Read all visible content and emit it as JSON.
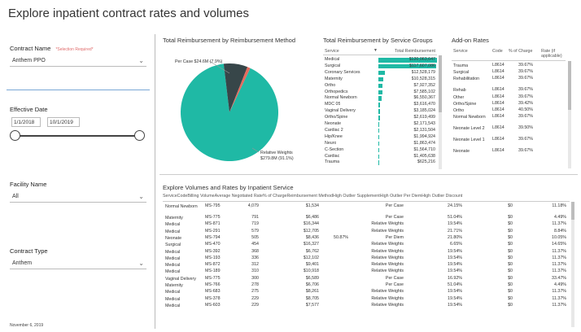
{
  "title": "Explore inpatient contract rates and volumes",
  "filters": {
    "contract_name_label": "Contract Name",
    "contract_name_required": "*Selection Required*",
    "contract_name_value": "Anthem PPO",
    "effective_date_label": "Effective Date",
    "date_start": "1/1/2018",
    "date_end": "10/1/2019",
    "slider_start": 0,
    "slider_end": 1,
    "facility_label": "Facility Name",
    "facility_value": "All",
    "contract_type_label": "Contract Type",
    "contract_type_value": "Anthem",
    "footer_date": "November 6, 2019"
  },
  "pie": {
    "title": "Total Reimbursement by Reimbursement Method",
    "label_a": "Per Case $24.6M (7.9%)",
    "label_b1": "Relative Weights",
    "label_b2": "$279.8M (91.1%)",
    "slices": [
      {
        "name": "Relative Weights",
        "value": 91.1,
        "color": "#1fb9a5"
      },
      {
        "name": "Per Case",
        "value": 7.9,
        "color": "#374649"
      },
      {
        "name": "Per Diem",
        "value": 1.0,
        "color": "#e56a5d"
      }
    ]
  },
  "groups": {
    "title": "Total Reimbursement by Service Groups",
    "headers": [
      "Service",
      "Total Reimbursement"
    ],
    "max": 120063647,
    "rows": [
      {
        "s": "Medical",
        "v": "$120,063,647",
        "n": 120063647
      },
      {
        "s": "Surgical",
        "v": "$117,607,086",
        "n": 117607086
      },
      {
        "s": "Coronary Services",
        "v": "$12,528,179",
        "n": 12528179
      },
      {
        "s": "Maternity",
        "v": "$10,528,315",
        "n": 10528315
      },
      {
        "s": "Ortho",
        "v": "$7,927,352",
        "n": 7927352
      },
      {
        "s": "Orthopedics",
        "v": "$7,585,102",
        "n": 7585102
      },
      {
        "s": "Normal Newborn",
        "v": "$6,550,367",
        "n": 6550367
      },
      {
        "s": "MDC 05",
        "v": "$3,616,470",
        "n": 3616470
      },
      {
        "s": "Vaginal Delivery",
        "v": "$3,185,024",
        "n": 3185024
      },
      {
        "s": "Ortho/Spine",
        "v": "$2,619,499",
        "n": 2619499
      },
      {
        "s": "Neonate",
        "v": "$2,171,543",
        "n": 2171543
      },
      {
        "s": "Cardiac 2",
        "v": "$2,131,504",
        "n": 2131504
      },
      {
        "s": "Hip/Knee",
        "v": "$1,994,924",
        "n": 1994924
      },
      {
        "s": "Neuro",
        "v": "$1,863,474",
        "n": 1863474
      },
      {
        "s": "C-Section",
        "v": "$1,564,710",
        "n": 1564710
      },
      {
        "s": "Cardiac",
        "v": "$1,405,638",
        "n": 1405638
      },
      {
        "s": "Trauma",
        "v": "$625,216",
        "n": 625216
      }
    ]
  },
  "addon": {
    "title": "Add-on Rates",
    "headers": [
      "Service",
      "Code",
      "% of Charge",
      "Rate (if applicable)"
    ],
    "rows": [
      {
        "s": "Trauma",
        "c": "L8614",
        "p": "39.67%"
      },
      {
        "s": "Surgical",
        "c": "L8614",
        "p": "39.67%"
      },
      {
        "s": "Rehabilitation",
        "c": "L8614",
        "p": "39.67%"
      },
      {
        "s": "Rehab",
        "c": "L8614",
        "p": "39.67%"
      },
      {
        "s": "Other",
        "c": "L8614",
        "p": "39.67%"
      },
      {
        "s": "Ortho/Spine",
        "c": "L8614",
        "p": "39.42%"
      },
      {
        "s": "Ortho",
        "c": "L8614",
        "p": "40.50%"
      },
      {
        "s": "Normal Newborn",
        "c": "L8614",
        "p": "39.67%"
      },
      {
        "s": "Neonate Level 2",
        "c": "L8614",
        "p": "39.50%"
      },
      {
        "s": "Neonate Level 1",
        "c": "L8614",
        "p": "39.67%"
      },
      {
        "s": "Neonate",
        "c": "L8614",
        "p": "39.67%"
      }
    ]
  },
  "volumes": {
    "title": "Explore Volumes and Rates by Inpatient Service",
    "headers": [
      "Service",
      "Code",
      "Billing Volume",
      "Average Negotiated Rate",
      "% of Charge",
      "Reimbursement Method",
      "High Outlier Supplement",
      "High Outlier Per Diem",
      "High Outlier Discount"
    ],
    "rows": [
      [
        "Normal Newborn",
        "MS-795",
        "4,079",
        "$1,534",
        "",
        "Per Case",
        "24.15%",
        "$0",
        "11.18%"
      ],
      [
        "Maternity",
        "MS-775",
        "791",
        "$6,486",
        "",
        "Per Case",
        "51.04%",
        "$0",
        "4.49%"
      ],
      [
        "Medical",
        "MS-871",
        "719",
        "$16,344",
        "",
        "Relative Weights",
        "19.54%",
        "$0",
        "11.37%"
      ],
      [
        "Medical",
        "MS-291",
        "579",
        "$12,705",
        "",
        "Relative Weights",
        "21.71%",
        "$0",
        "8.84%"
      ],
      [
        "Neonate",
        "MS-794",
        "505",
        "$8,436",
        "50.87%",
        "Per Diem",
        "21.80%",
        "$0",
        "10.05%"
      ],
      [
        "Surgical",
        "MS-470",
        "454",
        "$16,327",
        "",
        "Relative Weights",
        "6.65%",
        "$0",
        "14.65%"
      ],
      [
        "Medical",
        "MS-392",
        "368",
        "$6,762",
        "",
        "Relative Weights",
        "19.54%",
        "$0",
        "11.37%"
      ],
      [
        "Medical",
        "MS-193",
        "336",
        "$12,102",
        "",
        "Relative Weights",
        "19.54%",
        "$0",
        "11.37%"
      ],
      [
        "Medical",
        "MS-872",
        "312",
        "$9,401",
        "",
        "Relative Weights",
        "19.54%",
        "$0",
        "11.37%"
      ],
      [
        "Medical",
        "MS-189",
        "310",
        "$10,918",
        "",
        "Relative Weights",
        "19.54%",
        "$0",
        "11.37%"
      ],
      [
        "Vaginal Delivery",
        "MS-775",
        "300",
        "$6,589",
        "",
        "Per Case",
        "16.92%",
        "$0",
        "33.47%"
      ],
      [
        "Maternity",
        "MS-766",
        "278",
        "$6,706",
        "",
        "Per Case",
        "51.04%",
        "$0",
        "4.49%"
      ],
      [
        "Medical",
        "MS-683",
        "275",
        "$8,261",
        "",
        "Relative Weights",
        "19.54%",
        "$0",
        "11.37%"
      ],
      [
        "Medical",
        "MS-378",
        "229",
        "$8,705",
        "",
        "Relative Weights",
        "19.54%",
        "$0",
        "11.37%"
      ],
      [
        "Medical",
        "MS-603",
        "229",
        "$7,577",
        "",
        "Relative Weights",
        "19.54%",
        "$0",
        "11.37%"
      ]
    ]
  }
}
